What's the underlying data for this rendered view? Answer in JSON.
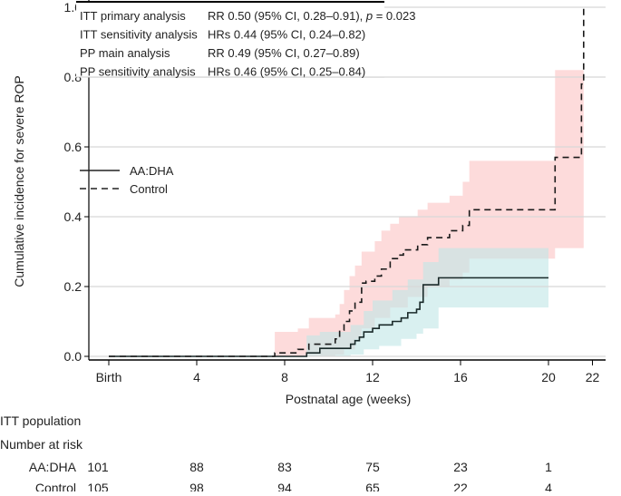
{
  "chart_data": {
    "type": "line",
    "subtype": "cumulative-incidence step curves with confidence bands",
    "xlabel": "Postnatal age (weeks)",
    "ylabel": "Cumulative incidence for severe ROP",
    "xlim": [
      -1,
      23
    ],
    "ylim": [
      0,
      1.0
    ],
    "x_ticks": [
      {
        "value": 0,
        "label": "Birth"
      },
      {
        "value": 4,
        "label": "4"
      },
      {
        "value": 8,
        "label": "8"
      },
      {
        "value": 12,
        "label": "12"
      },
      {
        "value": 16,
        "label": "16"
      },
      {
        "value": 20,
        "label": "20"
      },
      {
        "value": 22,
        "label": "22"
      }
    ],
    "y_ticks": [
      {
        "value": 0,
        "label": "0.0"
      },
      {
        "value": 0.2,
        "label": "0.2"
      },
      {
        "value": 0.4,
        "label": "0.4"
      },
      {
        "value": 0.6,
        "label": "0.6"
      },
      {
        "value": 0.8,
        "label": "0.8"
      },
      {
        "value": 1.0,
        "label": "1.0"
      }
    ],
    "grid": "horizontal",
    "legend_placement": "left",
    "annotation_table": [
      {
        "label": "ITT primary analysis",
        "value": "RR 0.50 (95% CI, 0.28–0.91), ",
        "p_label": "p",
        "p_value": " = 0.023"
      },
      {
        "label": "ITT sensitivity analysis",
        "value": "HRs 0.44 (95% CI, 0.24–0.82)"
      },
      {
        "label": "PP main analysis",
        "value": "RR 0.49 (95% CI, 0.27–0.89)"
      },
      {
        "label": "PP sensitivity analysis",
        "value": "HRs 0.46 (95% CI, 0.25–0.84)"
      }
    ],
    "series": [
      {
        "name": "AA:DHA",
        "style": "solid",
        "color": "#1a2a2a",
        "band_color": "#bfe6e6",
        "steps": [
          [
            0,
            0
          ],
          [
            9.0,
            0.01
          ],
          [
            9.6,
            0.023
          ],
          [
            11.0,
            0.035
          ],
          [
            11.2,
            0.045
          ],
          [
            11.4,
            0.055
          ],
          [
            11.6,
            0.07
          ],
          [
            12.0,
            0.08
          ],
          [
            12.3,
            0.09
          ],
          [
            12.9,
            0.1
          ],
          [
            13.3,
            0.11
          ],
          [
            13.6,
            0.125
          ],
          [
            14.0,
            0.135
          ],
          [
            14.15,
            0.155
          ],
          [
            14.3,
            0.205
          ],
          [
            15.0,
            0.225
          ],
          [
            20.0,
            0.225
          ]
        ],
        "upper": [
          [
            9.0,
            0.06
          ],
          [
            9.6,
            0.07
          ],
          [
            11.0,
            0.09
          ],
          [
            11.6,
            0.13
          ],
          [
            12.0,
            0.16
          ],
          [
            12.9,
            0.19
          ],
          [
            13.6,
            0.22
          ],
          [
            14.3,
            0.27
          ],
          [
            15.0,
            0.31
          ],
          [
            20.0,
            0.31
          ]
        ],
        "lower": [
          [
            9.0,
            0
          ],
          [
            11.0,
            0.005
          ],
          [
            11.6,
            0.02
          ],
          [
            12.3,
            0.03
          ],
          [
            13.3,
            0.05
          ],
          [
            14.0,
            0.065
          ],
          [
            14.3,
            0.08
          ],
          [
            15.0,
            0.14
          ],
          [
            20.0,
            0.14
          ]
        ]
      },
      {
        "name": "Control",
        "style": "dashed",
        "color": "#1a1a1a",
        "band_color": "#fcc8c8",
        "steps": [
          [
            0,
            0
          ],
          [
            7.55,
            0.01
          ],
          [
            8.6,
            0.02
          ],
          [
            9.1,
            0.035
          ],
          [
            10.3,
            0.05
          ],
          [
            10.5,
            0.075
          ],
          [
            10.7,
            0.1
          ],
          [
            10.95,
            0.13
          ],
          [
            11.2,
            0.155
          ],
          [
            11.5,
            0.21
          ],
          [
            11.7,
            0.215
          ],
          [
            12.1,
            0.23
          ],
          [
            12.4,
            0.25
          ],
          [
            12.8,
            0.28
          ],
          [
            13.2,
            0.29
          ],
          [
            13.4,
            0.305
          ],
          [
            14.05,
            0.32
          ],
          [
            14.5,
            0.34
          ],
          [
            15.5,
            0.36
          ],
          [
            16.1,
            0.375
          ],
          [
            16.4,
            0.42
          ],
          [
            20.3,
            0.57
          ],
          [
            21.5,
            0.78
          ],
          [
            21.6,
            1.0
          ]
        ],
        "upper": [
          [
            7.55,
            0.07
          ],
          [
            8.6,
            0.08
          ],
          [
            9.1,
            0.11
          ],
          [
            10.3,
            0.12
          ],
          [
            10.5,
            0.15
          ],
          [
            10.7,
            0.19
          ],
          [
            10.95,
            0.23
          ],
          [
            11.2,
            0.26
          ],
          [
            11.5,
            0.3
          ],
          [
            12.1,
            0.33
          ],
          [
            12.4,
            0.36
          ],
          [
            12.8,
            0.38
          ],
          [
            13.2,
            0.4
          ],
          [
            14.05,
            0.42
          ],
          [
            14.5,
            0.44
          ],
          [
            15.5,
            0.46
          ],
          [
            16.1,
            0.5
          ],
          [
            16.4,
            0.56
          ],
          [
            20.3,
            0.82
          ],
          [
            21.6,
            0.82
          ]
        ],
        "lower": [
          [
            7.55,
            0
          ],
          [
            10.3,
            0.005
          ],
          [
            10.7,
            0.02
          ],
          [
            11.2,
            0.05
          ],
          [
            11.5,
            0.08
          ],
          [
            12.1,
            0.11
          ],
          [
            12.8,
            0.14
          ],
          [
            13.6,
            0.17
          ],
          [
            14.5,
            0.2
          ],
          [
            15.5,
            0.22
          ],
          [
            16.1,
            0.24
          ],
          [
            16.4,
            0.28
          ],
          [
            20.3,
            0.31
          ],
          [
            21.6,
            0.31
          ]
        ]
      }
    ],
    "risk_table": {
      "title": "ITT population",
      "subtitle": "Number at risk",
      "timepoints": [
        0,
        4,
        8,
        12,
        16,
        20
      ],
      "rows": [
        {
          "label": "AA:DHA",
          "values": [
            "101",
            "88",
            "83",
            "75",
            "23",
            "1"
          ]
        },
        {
          "label": "Control",
          "values": [
            "105",
            "98",
            "94",
            "65",
            "22",
            "4"
          ]
        }
      ]
    }
  }
}
